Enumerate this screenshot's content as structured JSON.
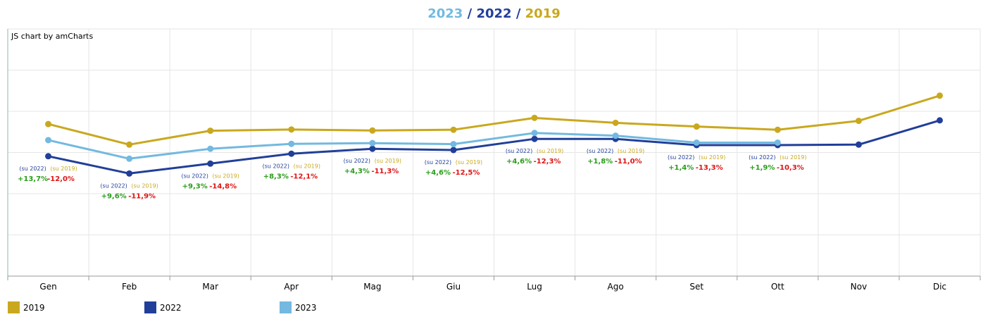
{
  "title": {
    "part_2023": "2023",
    "sep1": " / ",
    "part_2022": "2022",
    "sep2": " / ",
    "part_2019": "2019"
  },
  "credit": "JS chart by amCharts",
  "colors": {
    "y2019": "#c9a81e",
    "y2022": "#213f99",
    "y2023": "#73b9e0",
    "pos": "#2a9d1a",
    "neg": "#e01414",
    "title_sep": "#213f99"
  },
  "chart_data": {
    "type": "line",
    "categories": [
      "Gen",
      "Feb",
      "Mar",
      "Apr",
      "Mag",
      "Giu",
      "Lug",
      "Ago",
      "Set",
      "Ott",
      "Nov",
      "Dic"
    ],
    "ylim": [
      0,
      100
    ],
    "grid": true,
    "legend_position": "bottom-left",
    "series": [
      {
        "name": "2019",
        "key": "y2019",
        "values": [
          61.5,
          53.2,
          58.8,
          59.3,
          58.9,
          59.2,
          64.0,
          62.0,
          60.5,
          59.2,
          62.8,
          73.0
        ]
      },
      {
        "name": "2022",
        "key": "y2022",
        "values": [
          48.5,
          41.5,
          45.5,
          49.5,
          51.5,
          51.0,
          55.5,
          55.5,
          53.0,
          53.0,
          53.2,
          63.0
        ]
      },
      {
        "name": "2023",
        "key": "y2023",
        "values": [
          55.0,
          47.5,
          51.5,
          53.5,
          53.8,
          53.4,
          57.9,
          56.8,
          54.0,
          54.0,
          null,
          null
        ]
      }
    ],
    "annotations": [
      {
        "vs2022_label": "(su 2022)",
        "vs2019_label": "(su 2019)",
        "vs2022": "+13,7%",
        "vs2019": "-12,0%"
      },
      {
        "vs2022_label": "(su 2022)",
        "vs2019_label": "(su 2019)",
        "vs2022": "+9,6%",
        "vs2019": "-11,9%"
      },
      {
        "vs2022_label": "(su 2022)",
        "vs2019_label": "(su 2019)",
        "vs2022": "+9,3%",
        "vs2019": "-14,8%"
      },
      {
        "vs2022_label": "(su 2022)",
        "vs2019_label": "(su 2019)",
        "vs2022": "+8,3%",
        "vs2019": "-12,1%"
      },
      {
        "vs2022_label": "(su 2022)",
        "vs2019_label": "(su 2019)",
        "vs2022": "+4,3%",
        "vs2019": "-11,3%"
      },
      {
        "vs2022_label": "(su 2022)",
        "vs2019_label": "(su 2019)",
        "vs2022": "+4,6%",
        "vs2019": "-12,5%"
      },
      {
        "vs2022_label": "(su 2022)",
        "vs2019_label": "(su 2019)",
        "vs2022": "+4,6%",
        "vs2019": "-12,3%"
      },
      {
        "vs2022_label": "(su 2022)",
        "vs2019_label": "(su 2019)",
        "vs2022": "+1,8%",
        "vs2019": "-11,0%"
      },
      {
        "vs2022_label": "(su 2022)",
        "vs2019_label": "(su 2019)",
        "vs2022": "+1,4%",
        "vs2019": "-13,3%"
      },
      {
        "vs2022_label": "(su 2022)",
        "vs2019_label": "(su 2019)",
        "vs2022": "+1,9%",
        "vs2019": "-10,3%"
      }
    ]
  },
  "legend": [
    {
      "label": "2019",
      "key": "y2019"
    },
    {
      "label": "2022",
      "key": "y2022"
    },
    {
      "label": "2023",
      "key": "y2023"
    }
  ]
}
